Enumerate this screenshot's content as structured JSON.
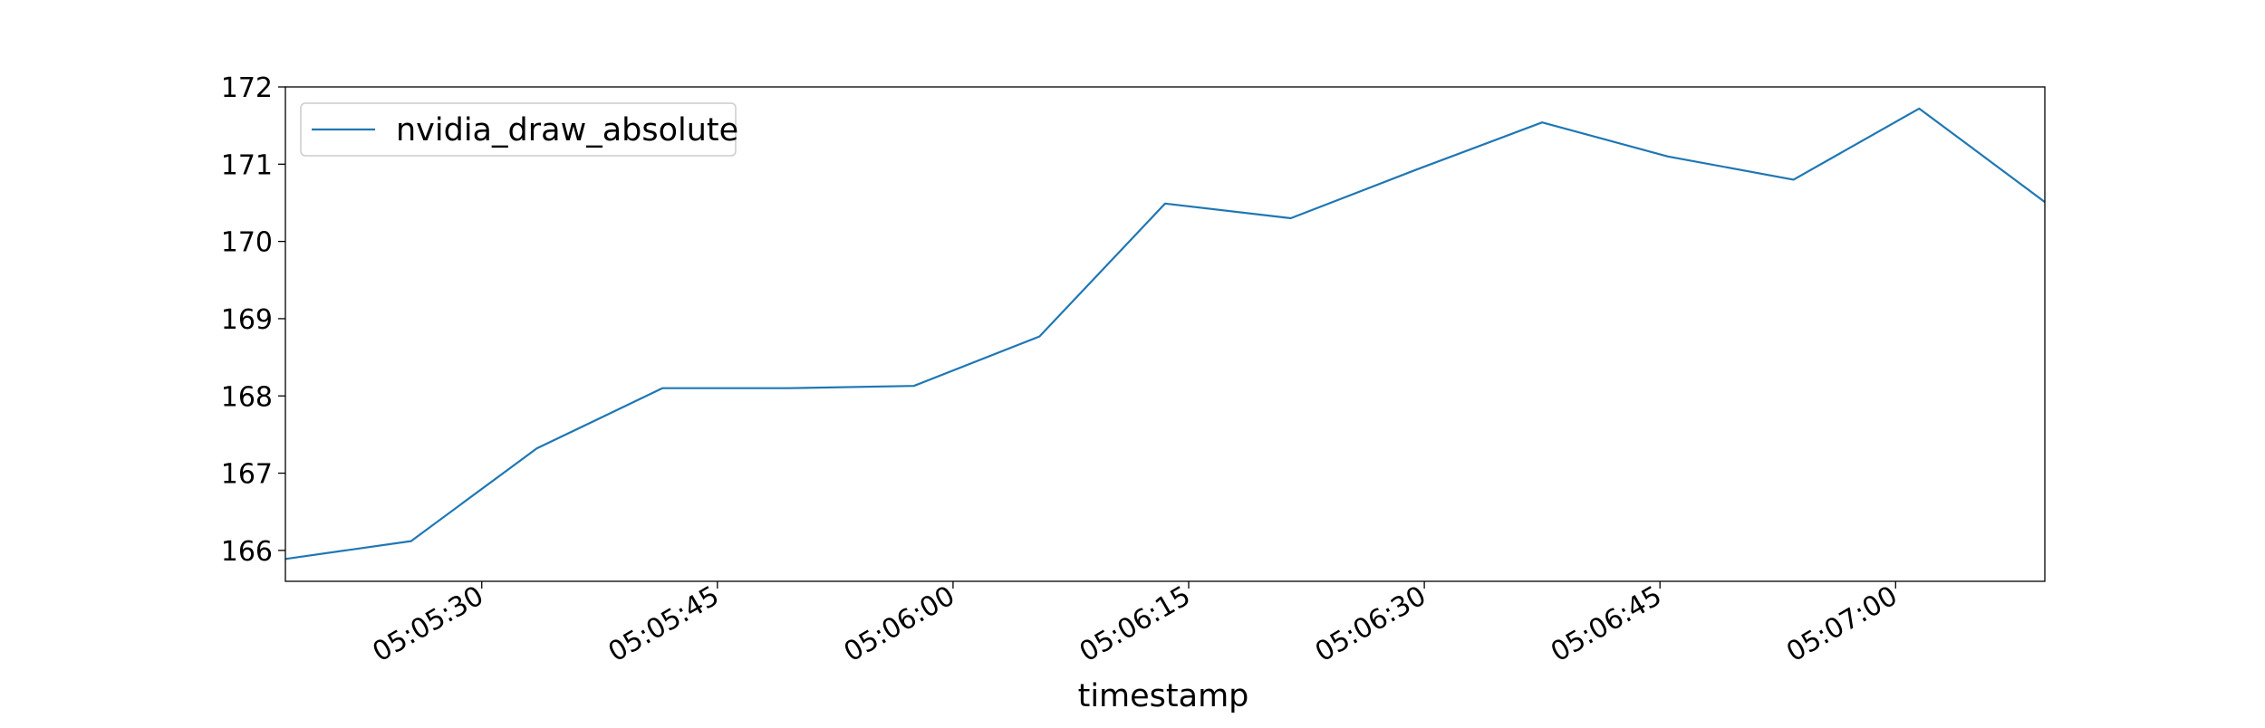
{
  "chart_data": {
    "type": "line",
    "title": "",
    "xlabel": "timestamp",
    "ylabel": "",
    "x_ticks": [
      "05:05:30",
      "05:05:45",
      "05:06:00",
      "05:06:15",
      "05:06:30",
      "05:06:45",
      "05:07:00"
    ],
    "y_ticks": [
      166,
      167,
      168,
      169,
      170,
      171,
      172
    ],
    "xlim": [
      "05:05:17.5",
      "05:07:09.5"
    ],
    "ylim": [
      165.6,
      172
    ],
    "grid": false,
    "legend": "upper left",
    "series": [
      {
        "name": "nvidia_draw_absolute",
        "color": "#1f77b4",
        "x": [
          "05:05:17.5",
          "05:05:25.5",
          "05:05:33.5",
          "05:05:41.5",
          "05:05:49.5",
          "05:05:57.5",
          "05:06:05.5",
          "05:06:13.5",
          "05:06:21.5",
          "05:06:29.5",
          "05:06:37.5",
          "05:06:45.5",
          "05:06:53.5",
          "05:07:01.5",
          "05:07:09.5"
        ],
        "values": [
          165.89,
          166.12,
          167.32,
          168.1,
          168.1,
          168.13,
          168.77,
          170.49,
          170.3,
          170.93,
          171.54,
          171.1,
          170.8,
          171.72,
          170.51
        ]
      }
    ]
  }
}
